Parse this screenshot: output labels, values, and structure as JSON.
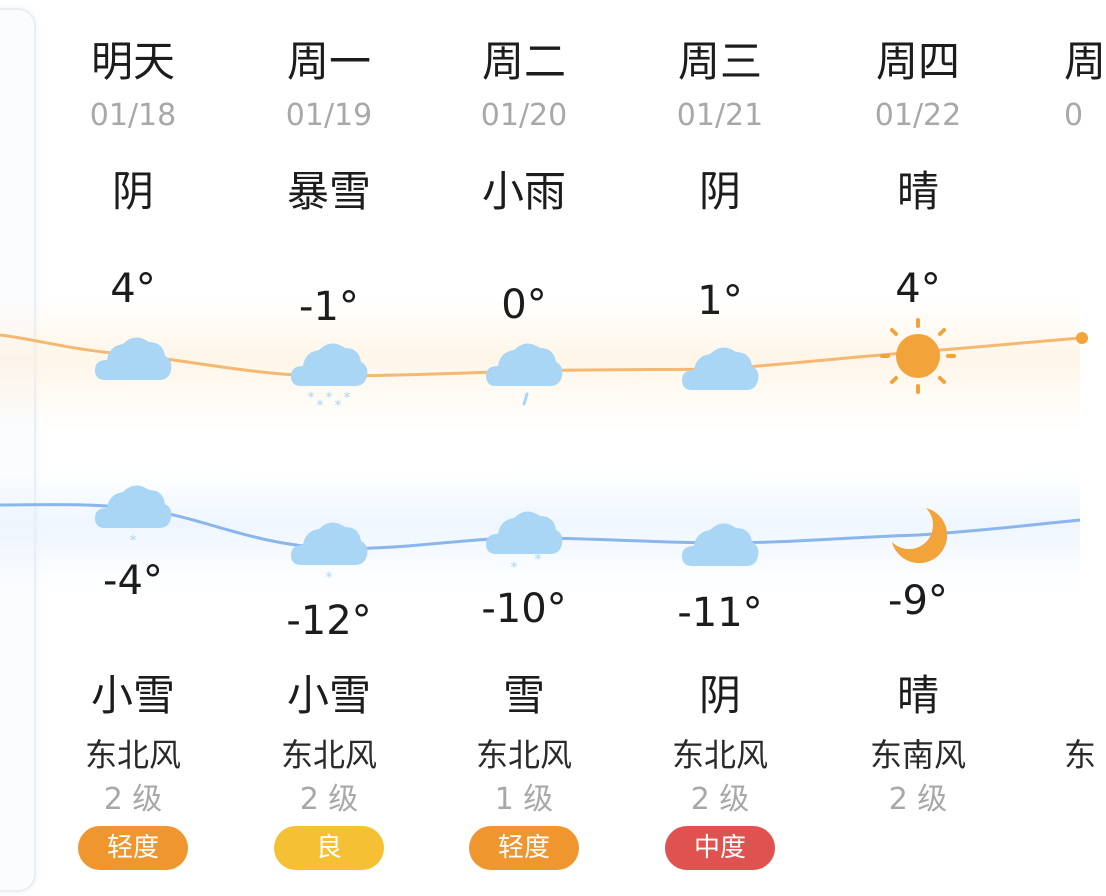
{
  "days": [
    {
      "day": "明天",
      "date": "01/18",
      "day_weather": "阴",
      "high": "4°",
      "low": "-4°",
      "night_weather": "小雪",
      "wind_dir": "东北风",
      "wind_level": "2 级",
      "aqi": "轻度",
      "aqi_color": "#f0962e",
      "day_icon": "cloud-icon",
      "night_icon": "light-snow-icon"
    },
    {
      "day": "周一",
      "date": "01/19",
      "day_weather": "暴雪",
      "high": "-1°",
      "low": "-12°",
      "night_weather": "小雪",
      "wind_dir": "东北风",
      "wind_level": "2 级",
      "aqi": "良",
      "aqi_color": "#f5c033",
      "day_icon": "heavy-snow-icon",
      "night_icon": "light-snow-icon"
    },
    {
      "day": "周二",
      "date": "01/20",
      "day_weather": "小雨",
      "high": "0°",
      "low": "-10°",
      "night_weather": "雪",
      "wind_dir": "东北风",
      "wind_level": "1 级",
      "aqi": "轻度",
      "aqi_color": "#f0962e",
      "day_icon": "light-rain-icon",
      "night_icon": "snow-icon"
    },
    {
      "day": "周三",
      "date": "01/21",
      "day_weather": "阴",
      "high": "1°",
      "low": "-11°",
      "night_weather": "阴",
      "wind_dir": "东北风",
      "wind_level": "2 级",
      "aqi": "中度",
      "aqi_color": "#e0524f",
      "day_icon": "cloud-icon",
      "night_icon": "cloud-icon"
    },
    {
      "day": "周四",
      "date": "01/22",
      "day_weather": "晴",
      "high": "4°",
      "low": "-9°",
      "night_weather": "晴",
      "wind_dir": "东南风",
      "wind_level": "2 级",
      "aqi": "",
      "aqi_color": "",
      "day_icon": "sun-icon",
      "night_icon": "moon-icon"
    }
  ],
  "partial_next": {
    "day": "周",
    "date": "0",
    "wind_dir": "东"
  },
  "colors": {
    "high_line": "#f5b870",
    "low_line": "#8ab6ec",
    "cloud": "#a9d6f5",
    "sun": "#f2a33a"
  }
}
